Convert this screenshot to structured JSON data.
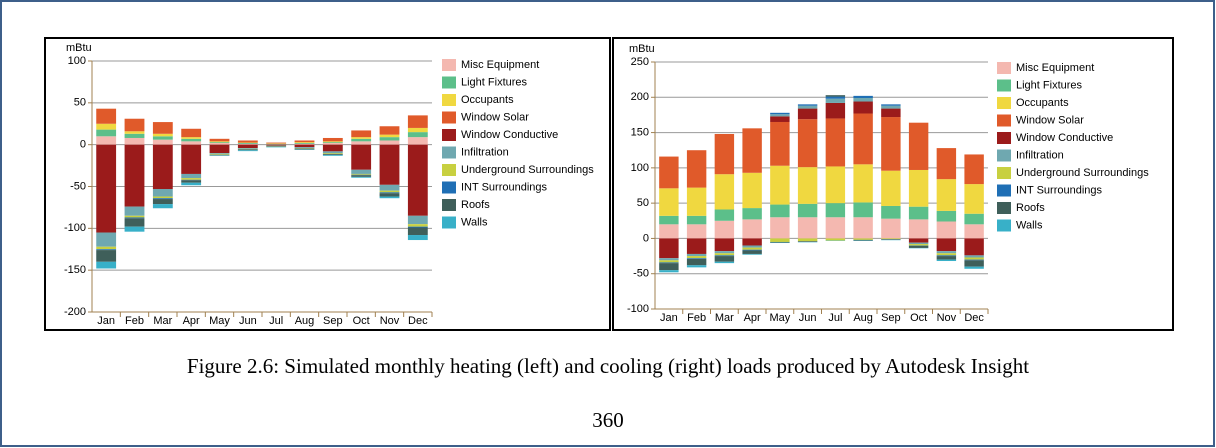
{
  "chart_data": [
    {
      "type": "bar",
      "stacked": true,
      "y_label": "mBtu",
      "categories": [
        "Jan",
        "Feb",
        "Mar",
        "Apr",
        "May",
        "Jun",
        "Jul",
        "Aug",
        "Sep",
        "Oct",
        "Nov",
        "Dec"
      ],
      "ylim": [
        -200,
        100
      ],
      "yticks": [
        -200,
        -150,
        -100,
        -50,
        0,
        50,
        100
      ],
      "grid": true,
      "series": [
        {
          "name": "Misc Equipment",
          "color": "#f4b8b0",
          "values": [
            10,
            8,
            6,
            4,
            2,
            1,
            0.5,
            1,
            2,
            4,
            5,
            9
          ]
        },
        {
          "name": "Light Fixtures",
          "color": "#5cbf8a",
          "values": [
            8,
            5,
            4,
            3,
            1,
            1,
            0.5,
            1,
            1,
            3,
            4,
            6
          ]
        },
        {
          "name": "Occupants",
          "color": "#f0d840",
          "values": [
            7,
            3,
            3,
            2,
            1,
            0.5,
            0.5,
            1,
            1,
            2,
            3,
            5
          ]
        },
        {
          "name": "Window Solar",
          "color": "#e05a2a",
          "values": [
            18,
            15,
            14,
            10,
            3,
            2.5,
            1,
            2,
            4,
            8,
            10,
            15
          ]
        },
        {
          "name": "Window Conductive",
          "color": "#9b1b1b",
          "values": [
            -105,
            -74,
            -53,
            -35,
            -10,
            -4,
            -1,
            -3,
            -8,
            -30,
            -48,
            -85
          ]
        },
        {
          "name": "Infiltration",
          "color": "#6fa8b0",
          "values": [
            -17,
            -11,
            -9,
            -5,
            -1,
            -1,
            -0.5,
            -1,
            -2,
            -5,
            -7,
            -10
          ]
        },
        {
          "name": "Underground Surroundings",
          "color": "#c8d040",
          "values": [
            -3,
            -2,
            -2,
            -2,
            -1,
            -0.5,
            -0.5,
            -0.5,
            -1,
            -1,
            -2,
            -3
          ]
        },
        {
          "name": "INT Surroundings",
          "color": "#1f6fb5",
          "values": [
            -1,
            -1,
            -1,
            -0.5,
            -0.3,
            -0.2,
            -0.2,
            -0.2,
            -0.3,
            -0.5,
            -1,
            -1
          ]
        },
        {
          "name": "Roofs",
          "color": "#3f5f5a",
          "values": [
            -14,
            -10,
            -6,
            -3,
            -0.5,
            -1,
            -0.5,
            -1,
            -1,
            -2,
            -4,
            -9
          ]
        },
        {
          "name": "Walls",
          "color": "#38b0c8",
          "values": [
            -8,
            -6,
            -5,
            -3,
            -0.5,
            -1,
            -0.5,
            -0.5,
            -1,
            -1,
            -2,
            -6
          ]
        }
      ]
    },
    {
      "type": "bar",
      "stacked": true,
      "y_label": "mBtu",
      "categories": [
        "Jan",
        "Feb",
        "Mar",
        "Apr",
        "May",
        "Jun",
        "Jul",
        "Aug",
        "Sep",
        "Oct",
        "Nov",
        "Dec"
      ],
      "ylim": [
        -100,
        250
      ],
      "yticks": [
        -100,
        -50,
        0,
        50,
        100,
        150,
        200,
        250
      ],
      "grid": true,
      "series": [
        {
          "name": "Misc Equipment",
          "color": "#f4b8b0",
          "values": [
            20,
            20,
            25,
            27,
            30,
            30,
            30,
            30,
            28,
            27,
            24,
            20
          ]
        },
        {
          "name": "Light Fixtures",
          "color": "#5cbf8a",
          "values": [
            12,
            12,
            16,
            16,
            18,
            19,
            20,
            21,
            18,
            18,
            15,
            15
          ]
        },
        {
          "name": "Occupants",
          "color": "#f0d840",
          "values": [
            39,
            40,
            50,
            50,
            55,
            52,
            52,
            54,
            50,
            52,
            45,
            42
          ]
        },
        {
          "name": "Window Solar",
          "color": "#e05a2a",
          "values": [
            45,
            53,
            57,
            63,
            62,
            68,
            68,
            72,
            76,
            67,
            44,
            42
          ]
        },
        {
          "name": "Window Conductive",
          "color": "#9b1b1b",
          "values": [
            -28,
            -22,
            -18,
            -10,
            8,
            15,
            22,
            17,
            12,
            -6,
            -18,
            -24
          ]
        },
        {
          "name": "Infiltration",
          "color": "#6fa8b0",
          "values": [
            -3,
            -3,
            -3,
            -3,
            3,
            4,
            6,
            5,
            4,
            -2,
            -3,
            -3
          ]
        },
        {
          "name": "Underground Surroundings",
          "color": "#c8d040",
          "values": [
            -3,
            -3,
            -3,
            -3,
            -5,
            -4,
            -3,
            -2,
            -1,
            -2,
            -3,
            -3
          ]
        },
        {
          "name": "INT Surroundings",
          "color": "#1f6fb5",
          "values": [
            -1,
            -1,
            -1,
            -1,
            2,
            2,
            3,
            3,
            2,
            -0.5,
            -1,
            -1
          ]
        },
        {
          "name": "Roofs",
          "color": "#3f5f5a",
          "values": [
            -10,
            -9,
            -8,
            -5,
            -1,
            -1,
            2,
            -1,
            -1,
            -3,
            -5,
            -9
          ]
        },
        {
          "name": "Walls",
          "color": "#38b0c8",
          "values": [
            -3,
            -3,
            -2,
            -1,
            -0.5,
            -0.5,
            -0.5,
            -0.5,
            -0.5,
            -0.5,
            -2,
            -3
          ]
        }
      ]
    }
  ],
  "caption": "Figure 2.6: Simulated monthly heating (left) and cooling (right) loads produced by Autodesk Insight",
  "page_number": "360"
}
